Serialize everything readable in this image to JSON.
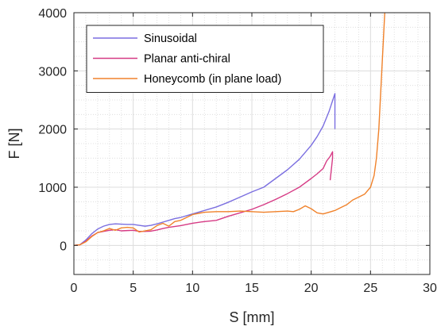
{
  "chart_data": {
    "type": "line",
    "title": "",
    "xlabel": "S [mm]",
    "ylabel": "F [N]",
    "xlim": [
      0,
      30
    ],
    "ylim": [
      -500,
      4000
    ],
    "xticks": [
      0,
      5,
      10,
      15,
      20,
      25,
      30
    ],
    "yticks": [
      0,
      1000,
      2000,
      3000,
      4000
    ],
    "grid": true,
    "minor_grid": true,
    "legend_position": "top-left",
    "series": [
      {
        "name": "Sinusoidal",
        "color": "#7b6fe0",
        "x": [
          0,
          0.5,
          1,
          1.5,
          2,
          2.5,
          3,
          3.5,
          4,
          4.5,
          5,
          5.5,
          6,
          6.5,
          7,
          7.5,
          8,
          8.5,
          9,
          10,
          11,
          12,
          13,
          14,
          15,
          16,
          17,
          18,
          19,
          20,
          20.5,
          21,
          21.5,
          22,
          22
        ],
        "y": [
          0,
          10,
          90,
          200,
          280,
          330,
          360,
          370,
          365,
          360,
          360,
          345,
          330,
          345,
          370,
          400,
          430,
          460,
          480,
          540,
          600,
          660,
          740,
          830,
          920,
          1000,
          1150,
          1300,
          1480,
          1720,
          1870,
          2050,
          2300,
          2610,
          2000
        ]
      },
      {
        "name": "Planar anti-chiral",
        "color": "#d63b85",
        "x": [
          0,
          0.5,
          1,
          1.5,
          2,
          2.5,
          3,
          3.5,
          4,
          4.5,
          5,
          5.5,
          6,
          6.5,
          7,
          7.5,
          8,
          9,
          10,
          11,
          12,
          13,
          14,
          15,
          16,
          17,
          18,
          19,
          20,
          20.5,
          21,
          21.3,
          21.6,
          21.8,
          21.8,
          21.6
        ],
        "y": [
          0,
          10,
          70,
          160,
          220,
          240,
          260,
          270,
          250,
          255,
          260,
          240,
          240,
          245,
          265,
          290,
          310,
          340,
          380,
          410,
          430,
          500,
          560,
          620,
          700,
          790,
          890,
          1000,
          1150,
          1230,
          1320,
          1450,
          1530,
          1610,
          1500,
          1120
        ]
      },
      {
        "name": "Honeycomb (in plane load)",
        "color": "#f0822b",
        "x": [
          0,
          0.5,
          1,
          1.5,
          2,
          2.5,
          3,
          3.5,
          4,
          4.5,
          5,
          5.5,
          6,
          6.5,
          7,
          7.5,
          8,
          8.5,
          9,
          10,
          11,
          12,
          13,
          14,
          15,
          16,
          17,
          18,
          18.5,
          19,
          19.5,
          20,
          20.5,
          21,
          21.5,
          22,
          22.5,
          23,
          23.5,
          24,
          24.5,
          25,
          25.3,
          25.5,
          25.7,
          25.9,
          26.1,
          26.2
        ],
        "y": [
          0,
          10,
          60,
          150,
          220,
          250,
          290,
          260,
          300,
          310,
          300,
          230,
          250,
          270,
          340,
          380,
          330,
          410,
          430,
          530,
          570,
          580,
          580,
          590,
          580,
          570,
          580,
          590,
          580,
          620,
          680,
          630,
          560,
          540,
          570,
          600,
          650,
          700,
          780,
          830,
          880,
          1000,
          1200,
          1500,
          2000,
          2800,
          3600,
          4000
        ]
      }
    ]
  }
}
